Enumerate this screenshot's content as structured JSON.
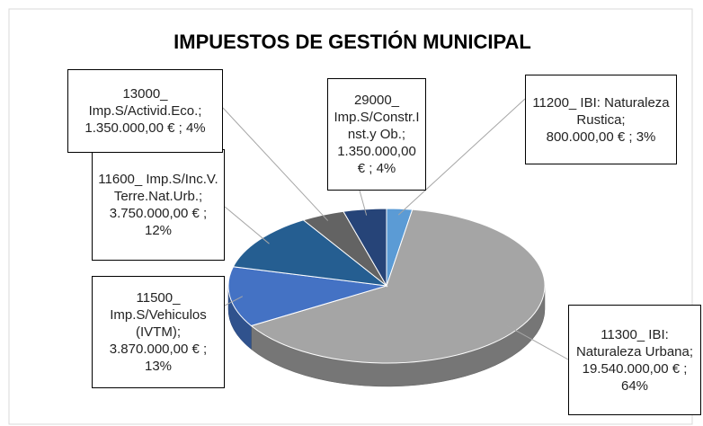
{
  "chart_data": {
    "type": "pie3d",
    "title": "IMPUESTOS DE GESTIÓN MUNICIPAL",
    "categories": [
      "11200_ IBI: Naturaleza Rustica;",
      "11300_ IBI: Naturaleza Urbana;",
      "11500_ Imp.S/Vehiculos (IVTM);",
      "11600_ Imp.S/Inc.V. Terre.Nat.Urb.;",
      "13000_ Imp.S/Activid.Eco.;",
      "29000_ Imp.S/Constr.Inst.y Ob.;"
    ],
    "values": [
      800000,
      19540000,
      3870000,
      3750000,
      1350000,
      1350000
    ],
    "value_labels": [
      "800.000,00 € ; 3%",
      "19.540.000,00 € ; 64%",
      "3.870.000,00 € ; 13%",
      "3.750.000,00 € ; 12%",
      "1.350.000,00 € ; 4%",
      "1.350.000,00 € ; 4%"
    ],
    "colors": [
      "#5b9bd5",
      "#a5a5a5",
      "#4472c4",
      "#255e91",
      "#636363",
      "#264478"
    ]
  }
}
